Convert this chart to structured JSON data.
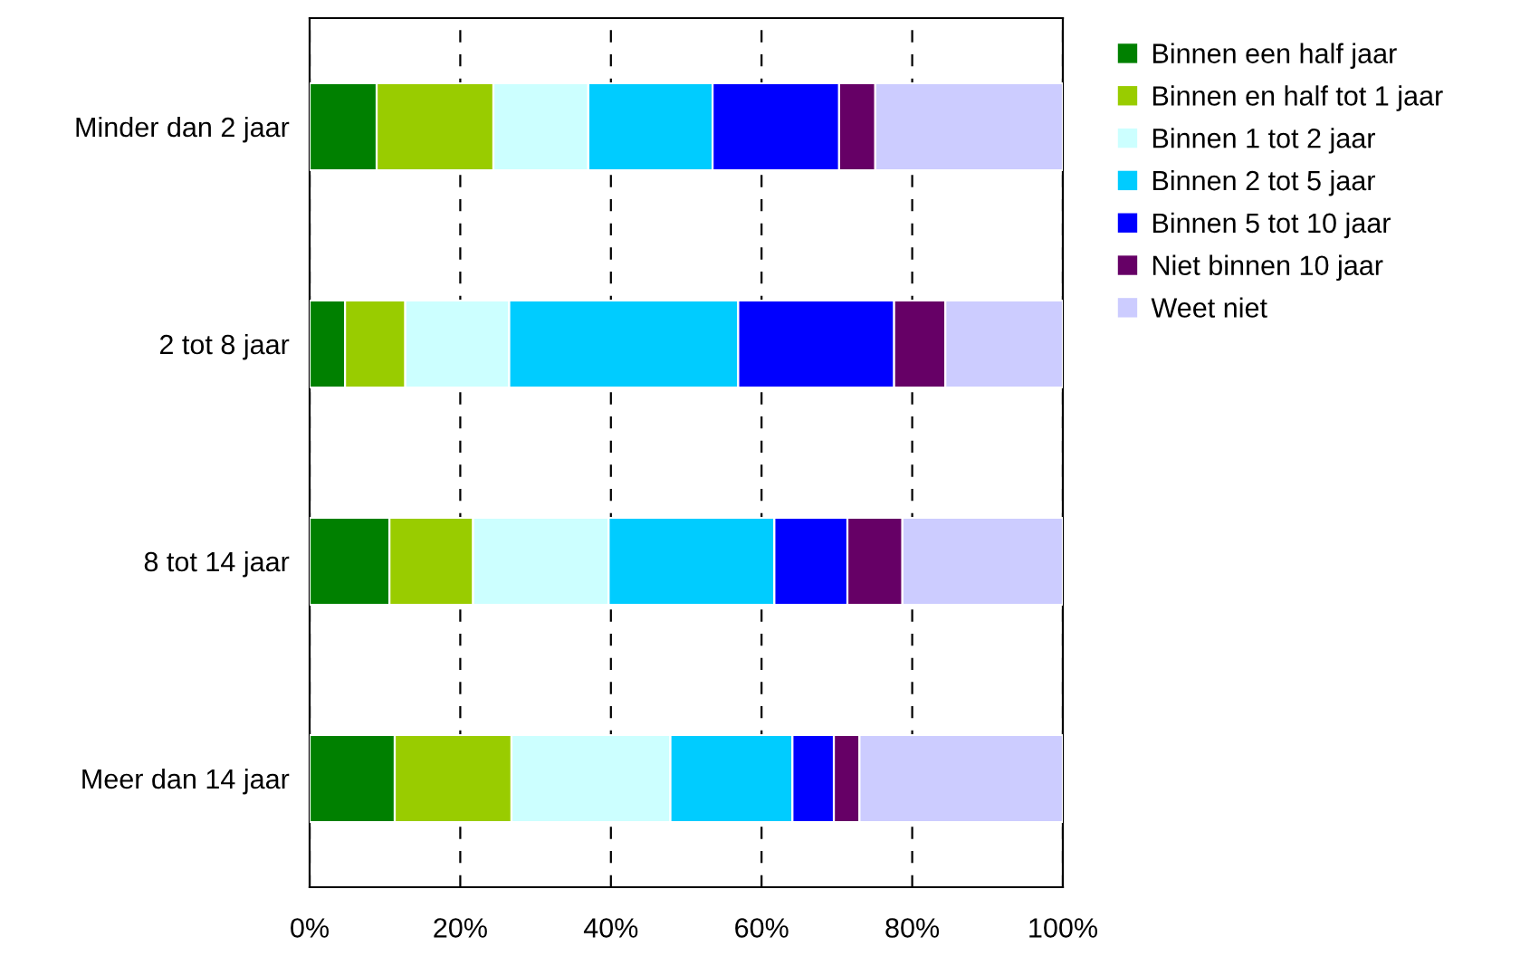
{
  "chart_data": {
    "type": "bar",
    "orientation": "horizontal",
    "stacked": true,
    "categories": [
      "Minder dan 2 jaar",
      "2 tot 8 jaar",
      "8 tot 14 jaar",
      "Meer dan 14 jaar"
    ],
    "series": [
      {
        "name": "Binnen een half jaar",
        "color": "#008000",
        "values": [
          8.9,
          4.7,
          10.6,
          11.3
        ]
      },
      {
        "name": "Binnen en half tot 1 jaar",
        "color": "#99cc00",
        "values": [
          15.5,
          8.0,
          11.1,
          15.5
        ]
      },
      {
        "name": "Binnen 1 tot 2 jaar",
        "color": "#ccffff",
        "values": [
          12.6,
          13.8,
          18.0,
          21.1
        ]
      },
      {
        "name": "Binnen 2 tot 5 jaar",
        "color": "#00ccff",
        "values": [
          16.5,
          30.4,
          22.0,
          16.2
        ]
      },
      {
        "name": "Binnen 5 tot 10 jaar",
        "color": "#0000ff",
        "values": [
          16.8,
          20.7,
          9.7,
          5.5
        ]
      },
      {
        "name": "Niet binnen 10 jaar",
        "color": "#660066",
        "values": [
          4.8,
          6.8,
          7.3,
          3.4
        ]
      },
      {
        "name": "Weet niet",
        "color": "#ccccff",
        "values": [
          24.9,
          15.6,
          21.3,
          27.0
        ]
      }
    ],
    "xlim": [
      0,
      100
    ],
    "xticks": [
      {
        "value": 0,
        "label": "0%"
      },
      {
        "value": 20,
        "label": "20%"
      },
      {
        "value": 40,
        "label": "40%"
      },
      {
        "value": 60,
        "label": "60%"
      },
      {
        "value": 80,
        "label": "80%"
      },
      {
        "value": 100,
        "label": "100%"
      }
    ],
    "grid": "x",
    "legend": "right"
  }
}
